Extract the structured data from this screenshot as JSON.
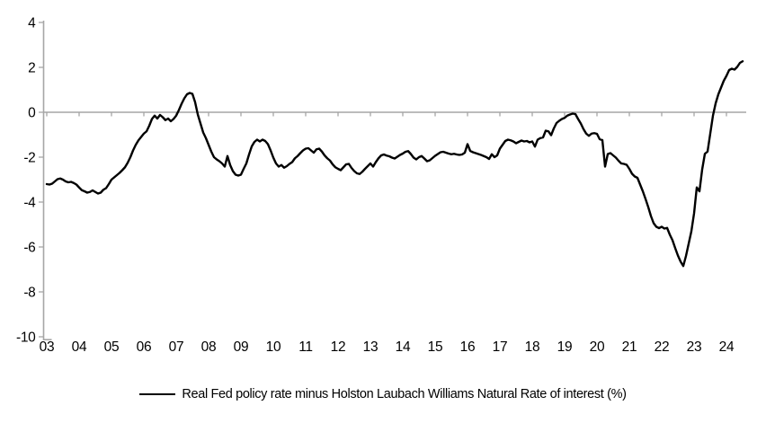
{
  "chart_data": {
    "type": "line",
    "title": "",
    "grid": false,
    "legend_position": "bottom",
    "background": "#FFFFFF",
    "axis_color": "#A6A6A6",
    "ylim": [
      -10,
      4
    ],
    "y_ticks": [
      4,
      2,
      0,
      -2,
      -4,
      -6,
      -8,
      -10
    ],
    "y_tick_labels": [
      "4",
      "2",
      "0",
      "-2",
      "-4",
      "-6",
      "-8",
      "-10"
    ],
    "x_tick_labels": [
      "03",
      "04",
      "05",
      "06",
      "07",
      "08",
      "09",
      "10",
      "11",
      "12",
      "13",
      "14",
      "15",
      "16",
      "17",
      "18",
      "19",
      "20",
      "21",
      "22",
      "23",
      "24"
    ],
    "x_start_year": 2003,
    "x_end_year": 2024.5,
    "points_per_year": 12,
    "zero_line": true,
    "series": [
      {
        "name": "Real Fed policy rate minus Holston Laubach Williams Natural Rate of interest (%)",
        "color": "#000000",
        "values": [
          -3.2,
          -3.22,
          -3.18,
          -3.08,
          -2.98,
          -2.95,
          -3.0,
          -3.08,
          -3.12,
          -3.1,
          -3.15,
          -3.22,
          -3.35,
          -3.47,
          -3.52,
          -3.58,
          -3.55,
          -3.48,
          -3.55,
          -3.62,
          -3.58,
          -3.45,
          -3.38,
          -3.2,
          -3.0,
          -2.9,
          -2.8,
          -2.7,
          -2.58,
          -2.45,
          -2.25,
          -2.0,
          -1.7,
          -1.45,
          -1.25,
          -1.1,
          -0.95,
          -0.85,
          -0.6,
          -0.3,
          -0.15,
          -0.28,
          -0.12,
          -0.22,
          -0.35,
          -0.28,
          -0.4,
          -0.3,
          -0.15,
          0.1,
          0.38,
          0.62,
          0.8,
          0.86,
          0.82,
          0.45,
          -0.1,
          -0.5,
          -0.9,
          -1.15,
          -1.45,
          -1.75,
          -2.0,
          -2.1,
          -2.18,
          -2.28,
          -2.42,
          -1.95,
          -2.35,
          -2.62,
          -2.78,
          -2.82,
          -2.78,
          -2.52,
          -2.28,
          -1.88,
          -1.52,
          -1.32,
          -1.22,
          -1.3,
          -1.22,
          -1.28,
          -1.42,
          -1.7,
          -2.02,
          -2.28,
          -2.42,
          -2.35,
          -2.47,
          -2.4,
          -2.3,
          -2.22,
          -2.05,
          -1.95,
          -1.82,
          -1.7,
          -1.62,
          -1.6,
          -1.7,
          -1.8,
          -1.65,
          -1.62,
          -1.75,
          -1.92,
          -2.05,
          -2.15,
          -2.32,
          -2.45,
          -2.52,
          -2.58,
          -2.45,
          -2.32,
          -2.3,
          -2.48,
          -2.62,
          -2.72,
          -2.75,
          -2.65,
          -2.52,
          -2.4,
          -2.28,
          -2.42,
          -2.22,
          -2.05,
          -1.92,
          -1.88,
          -1.93,
          -1.96,
          -2.02,
          -2.06,
          -1.98,
          -1.9,
          -1.84,
          -1.76,
          -1.73,
          -1.86,
          -2.02,
          -2.1,
          -2.0,
          -1.95,
          -2.06,
          -2.18,
          -2.14,
          -2.04,
          -1.94,
          -1.86,
          -1.78,
          -1.76,
          -1.8,
          -1.84,
          -1.87,
          -1.85,
          -1.88,
          -1.9,
          -1.88,
          -1.8,
          -1.42,
          -1.72,
          -1.78,
          -1.82,
          -1.86,
          -1.9,
          -1.95,
          -2.0,
          -2.08,
          -1.87,
          -2.0,
          -1.92,
          -1.62,
          -1.45,
          -1.28,
          -1.22,
          -1.25,
          -1.3,
          -1.38,
          -1.32,
          -1.26,
          -1.3,
          -1.28,
          -1.34,
          -1.3,
          -1.53,
          -1.22,
          -1.15,
          -1.12,
          -0.82,
          -0.85,
          -1.02,
          -0.72,
          -0.48,
          -0.38,
          -0.3,
          -0.25,
          -0.15,
          -0.1,
          -0.06,
          -0.08,
          -0.3,
          -0.5,
          -0.75,
          -0.95,
          -1.05,
          -0.95,
          -0.93,
          -0.96,
          -1.2,
          -1.24,
          -2.42,
          -1.86,
          -1.82,
          -1.92,
          -2.02,
          -2.16,
          -2.28,
          -2.3,
          -2.34,
          -2.52,
          -2.74,
          -2.86,
          -2.92,
          -3.22,
          -3.52,
          -3.86,
          -4.22,
          -4.62,
          -4.94,
          -5.1,
          -5.16,
          -5.1,
          -5.18,
          -5.15,
          -5.45,
          -5.7,
          -6.05,
          -6.38,
          -6.65,
          -6.85,
          -6.4,
          -5.85,
          -5.3,
          -4.5,
          -3.35,
          -3.52,
          -2.55,
          -1.85,
          -1.75,
          -0.95,
          -0.15,
          0.4,
          0.8,
          1.1,
          1.4,
          1.62,
          1.88,
          1.94,
          1.9,
          2.02,
          2.2,
          2.27
        ]
      }
    ]
  }
}
